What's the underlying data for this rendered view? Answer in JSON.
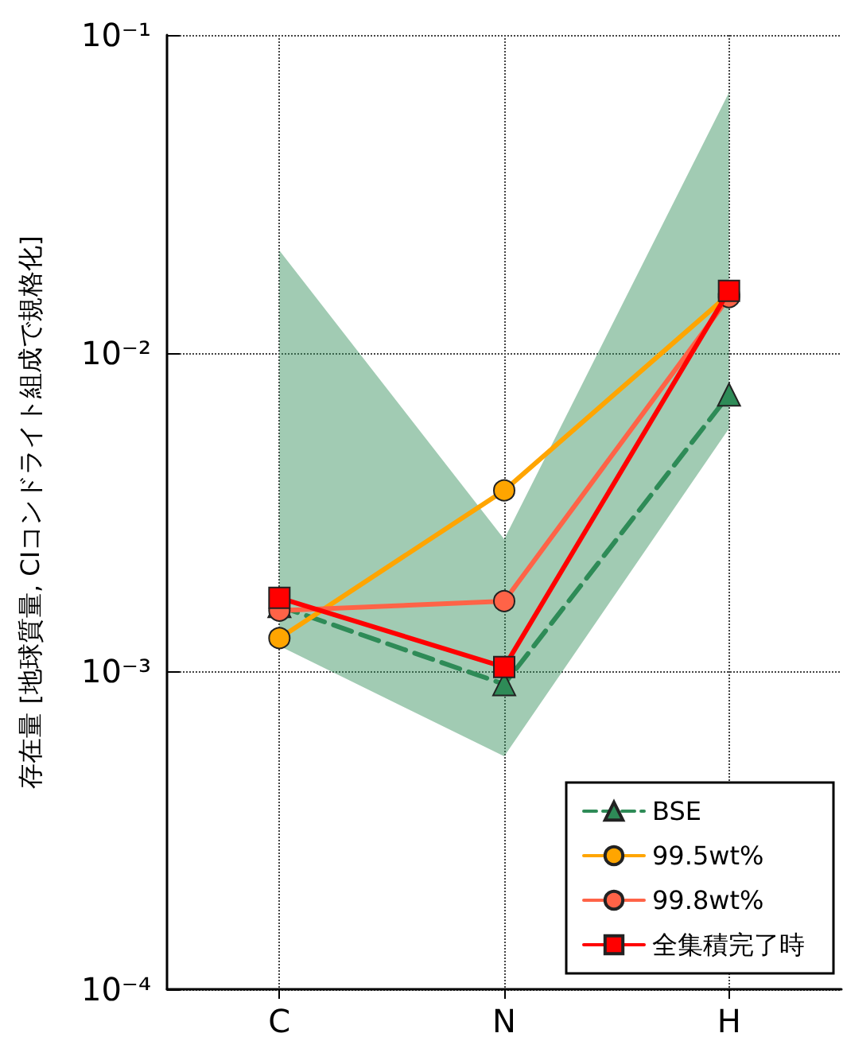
{
  "chart_data": {
    "type": "line",
    "ylabel": "存在量 [地球質量, CIコンドライト組成で規格化]",
    "categories": [
      "C",
      "N",
      "H"
    ],
    "log": "y",
    "ylim": [
      0.0001,
      0.1
    ],
    "yticks": [
      {
        "value": 0.0001,
        "label": "10⁻⁴"
      },
      {
        "value": 0.001,
        "label": "10⁻³"
      },
      {
        "value": 0.01,
        "label": "10⁻²"
      },
      {
        "value": 0.1,
        "label": "10⁻¹"
      }
    ],
    "grid": true,
    "legend": "bottom right",
    "series": [
      {
        "name": "BSE",
        "color": "#2e8b57",
        "values": [
          0.0016,
          0.00091,
          0.0074
        ],
        "marker": "triangle",
        "line_style": "dashed",
        "lower": [
          0.0012,
          0.00054,
          0.0058
        ],
        "upper": [
          0.021,
          0.0026,
          0.066
        ]
      },
      {
        "name": "99.5wt%",
        "color": "#ffa500",
        "values": [
          0.00127,
          0.0037,
          0.0153
        ],
        "marker": "circle",
        "line_style": "solid"
      },
      {
        "name": "99.8wt%",
        "color": "#ff6347",
        "values": [
          0.00155,
          0.00166,
          0.015
        ],
        "marker": "circle",
        "line_style": "solid"
      },
      {
        "name": "全集積完了時",
        "color": "#ff0000",
        "values": [
          0.0017,
          0.00103,
          0.0157
        ],
        "marker": "square",
        "line_style": "solid"
      }
    ]
  }
}
